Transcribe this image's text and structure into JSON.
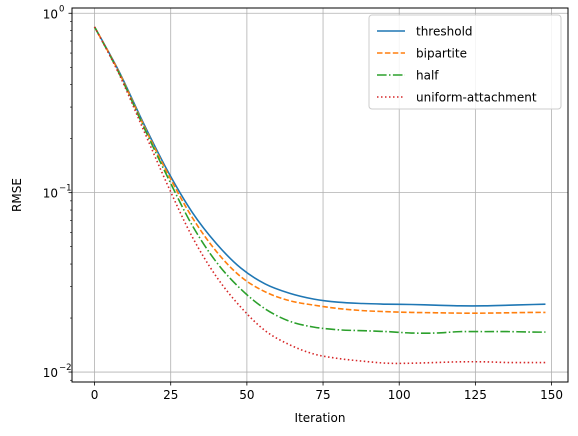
{
  "chart_data": {
    "type": "line",
    "title": "",
    "xlabel": "Iteration",
    "ylabel": "RMSE",
    "xlim": [
      -7.4,
      155.4
    ],
    "ylim": [
      0.0088,
      1.07
    ],
    "yscale": "log",
    "grid": true,
    "legend_position": "top-right",
    "x_ticks": [
      0,
      25,
      50,
      75,
      100,
      125,
      150
    ],
    "x_tick_labels": [
      "0",
      "25",
      "50",
      "75",
      "100",
      "125",
      "150"
    ],
    "y_ticks": [
      0.01,
      0.1,
      1
    ],
    "y_tick_labels": [
      "10",
      "10",
      "10"
    ],
    "y_tick_exponents": [
      "−2",
      "−1",
      "0"
    ],
    "x": [
      0,
      8,
      16,
      24,
      32,
      40,
      48,
      56,
      64,
      72,
      80,
      88,
      96,
      104,
      112,
      120,
      128,
      136,
      144,
      148
    ],
    "series": [
      {
        "name": "threshold",
        "color": "#1f77b4",
        "dash": "solid",
        "values": [
          0.84,
          0.475,
          0.245,
          0.132,
          0.078,
          0.052,
          0.038,
          0.031,
          0.0275,
          0.0255,
          0.0245,
          0.0241,
          0.0239,
          0.0238,
          0.0236,
          0.0234,
          0.0234,
          0.0236,
          0.0238,
          0.0239
        ]
      },
      {
        "name": "bipartite",
        "color": "#ff7f0e",
        "dash": "dashed",
        "values": [
          0.84,
          0.47,
          0.24,
          0.128,
          0.073,
          0.047,
          0.034,
          0.028,
          0.025,
          0.0236,
          0.0226,
          0.022,
          0.0217,
          0.0215,
          0.0214,
          0.0213,
          0.0213,
          0.0214,
          0.0215,
          0.0215
        ]
      },
      {
        "name": "half",
        "color": "#2ca02c",
        "dash": "dashdot",
        "values": [
          0.84,
          0.465,
          0.235,
          0.122,
          0.066,
          0.041,
          0.029,
          0.0225,
          0.0192,
          0.0178,
          0.0172,
          0.017,
          0.0168,
          0.0165,
          0.0165,
          0.0168,
          0.0168,
          0.0168,
          0.0167,
          0.0167
        ]
      },
      {
        "name": "uniform-attachment",
        "color": "#d62728",
        "dash": "dotted",
        "values": [
          0.84,
          0.46,
          0.225,
          0.11,
          0.057,
          0.034,
          0.023,
          0.017,
          0.0142,
          0.0126,
          0.0119,
          0.0115,
          0.0112,
          0.0112,
          0.0113,
          0.0114,
          0.0114,
          0.0113,
          0.0113,
          0.0113
        ]
      }
    ]
  }
}
